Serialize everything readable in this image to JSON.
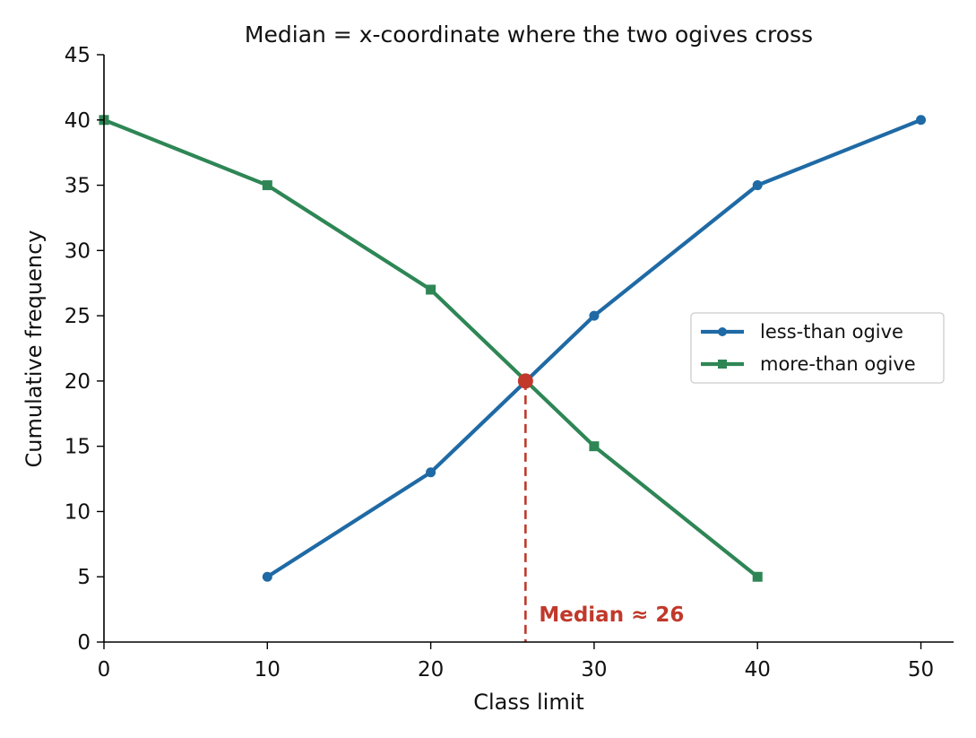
{
  "chart_data": {
    "type": "line",
    "title": "Median = x-coordinate where the two ogives cross",
    "xlabel": "Class limit",
    "ylabel": "Cumulative frequency",
    "xlim": [
      0,
      52
    ],
    "ylim": [
      0,
      45
    ],
    "xticks": [
      0,
      10,
      20,
      30,
      40,
      50
    ],
    "yticks": [
      0,
      5,
      10,
      15,
      20,
      25,
      30,
      35,
      40,
      45
    ],
    "grid": false,
    "legend_position": "center-right",
    "series": [
      {
        "name": "less-than ogive",
        "color": "#1f6aa5",
        "marker": "circle",
        "x": [
          10,
          20,
          30,
          40,
          50
        ],
        "y": [
          5,
          13,
          25,
          35,
          40
        ]
      },
      {
        "name": "more-than ogive",
        "color": "#2e8655",
        "marker": "square",
        "x": [
          0,
          10,
          20,
          30,
          40
        ],
        "y": [
          40,
          35,
          27,
          15,
          5
        ]
      }
    ],
    "median": {
      "x": 25.8,
      "y": 20,
      "color": "#c0392b",
      "label": "Median ≈ 26"
    }
  }
}
